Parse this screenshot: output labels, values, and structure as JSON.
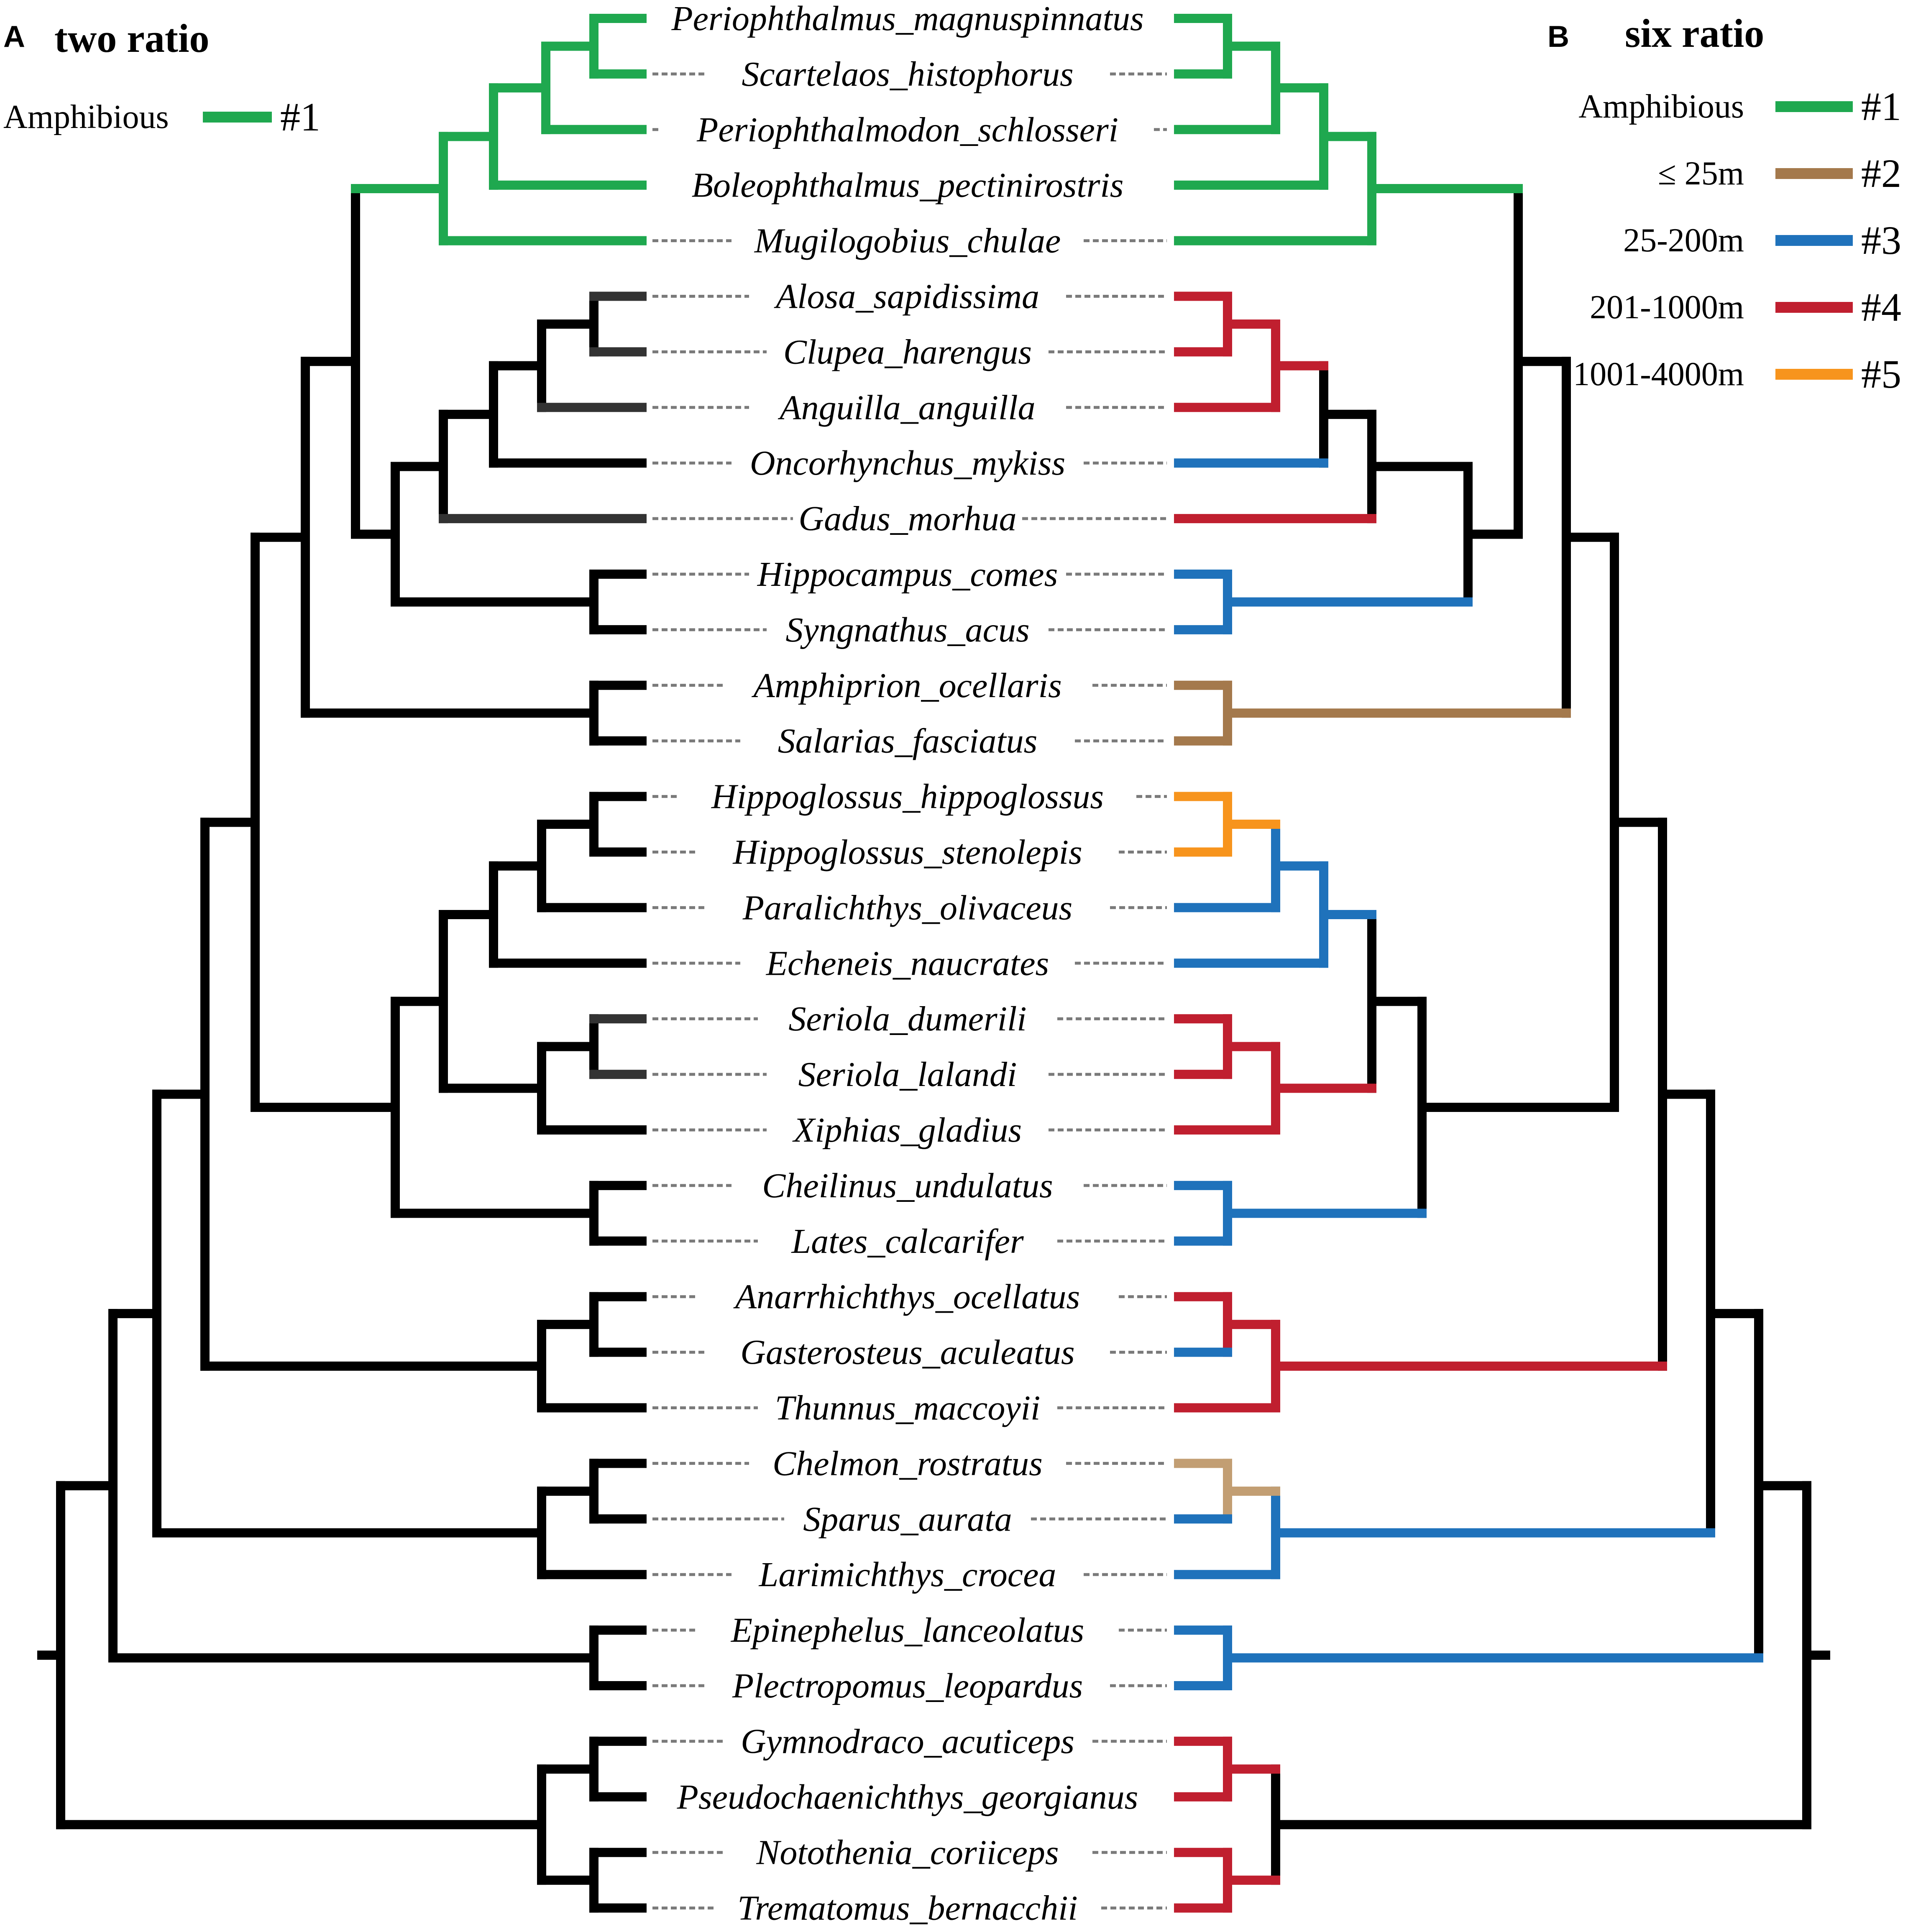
{
  "panel_a": {
    "letter": "A",
    "title": "two ratio"
  },
  "panel_b": {
    "letter": "B",
    "title": "six ratio"
  },
  "legend_a": [
    {
      "label": "Amphibious",
      "color": "#1fa84f",
      "number": "#1"
    }
  ],
  "legend_b": [
    {
      "label": "Amphibious",
      "color": "#1fa84f",
      "number": "#1"
    },
    {
      "label": "≤ 25m",
      "color": "#a4794c",
      "number": "#2"
    },
    {
      "label": "25-200m",
      "color": "#1f72bb",
      "number": "#3"
    },
    {
      "label": "201-1000m",
      "color": "#c01f2f",
      "number": "#4"
    },
    {
      "label": "1001-4000m",
      "color": "#f7941d",
      "number": "#5"
    }
  ],
  "colors": {
    "default": "#000000",
    "grey": "#333333",
    "amphibious": "#1fa84f",
    "shallow": "#a4794c",
    "shallow_light": "#c29e73",
    "shelf": "#1f72bb",
    "deep": "#c01f2f",
    "abyssal": "#f7941d",
    "dash": "#7a7a7a"
  },
  "species": [
    "Periophthalmus_magnuspinnatus",
    "Scartelaos_histophorus",
    "Periophthalmodon_schlosseri",
    "Boleophthalmus_pectinirostris",
    "Mugilogobius_chulae",
    "Alosa_sapidissima",
    "Clupea_harengus",
    "Anguilla_anguilla",
    "Oncorhynchus_mykiss",
    "Gadus_morhua",
    "Hippocampus_comes",
    "Syngnathus_acus",
    "Amphiprion_ocellaris",
    "Salarias_fasciatus",
    "Hippoglossus_hippoglossus",
    "Hippoglossus_stenolepis",
    "Paralichthys_olivaceus",
    "Echeneis_naucrates",
    "Seriola_dumerili",
    "Seriola_lalandi",
    "Xiphias_gladius",
    "Cheilinus_undulatus",
    "Lates_calcarifer",
    "Anarrhichthys_ocellatus",
    "Gasterosteus_aculeatus",
    "Thunnus_maccoyii",
    "Chelmon_rostratus",
    "Sparus_aurata",
    "Larimichthys_crocea",
    "Epinephelus_lanceolatus",
    "Plectropomus_leopardus",
    "Gymnodraco_acuticeps",
    "Pseudochaenichthys_georgianus",
    "Notothenia_coriiceps",
    "Trematomus_bernacchii"
  ],
  "tree": {
    "nodes": [
      {
        "id": "ps",
        "c": [
          0,
          1
        ]
      },
      {
        "id": "pp",
        "c": [
          "ps",
          2
        ]
      },
      {
        "id": "ppb",
        "c": [
          "pp",
          3
        ]
      },
      {
        "id": "go",
        "c": [
          "ppb",
          4
        ]
      },
      {
        "id": "ac",
        "c": [
          5,
          6
        ]
      },
      {
        "id": "aca",
        "c": [
          "ac",
          7
        ]
      },
      {
        "id": "acao",
        "c": [
          "aca",
          8
        ]
      },
      {
        "id": "acaog",
        "c": [
          "acao",
          9
        ]
      },
      {
        "id": "hs",
        "c": [
          10,
          11
        ]
      },
      {
        "id": "clu",
        "c": [
          "acaog",
          "hs"
        ]
      },
      {
        "id": "gc",
        "c": [
          "go",
          "clu"
        ]
      },
      {
        "id": "as",
        "c": [
          12,
          13
        ]
      },
      {
        "id": "g1",
        "c": [
          "gc",
          "as"
        ]
      },
      {
        "id": "hh",
        "c": [
          14,
          15
        ]
      },
      {
        "id": "hhp",
        "c": [
          "hh",
          16
        ]
      },
      {
        "id": "hhpe",
        "c": [
          "hhp",
          17
        ]
      },
      {
        "id": "sl",
        "c": [
          18,
          19
        ]
      },
      {
        "id": "slx",
        "c": [
          "sl",
          20
        ]
      },
      {
        "id": "flat",
        "c": [
          "hhpe",
          "slx"
        ]
      },
      {
        "id": "cl",
        "c": [
          21,
          22
        ]
      },
      {
        "id": "g2",
        "c": [
          "flat",
          "cl"
        ]
      },
      {
        "id": "g12",
        "c": [
          "g1",
          "g2"
        ]
      },
      {
        "id": "ag",
        "c": [
          23,
          24
        ]
      },
      {
        "id": "agt",
        "c": [
          "ag",
          25
        ]
      },
      {
        "id": "g3",
        "c": [
          "g12",
          "agt"
        ]
      },
      {
        "id": "cs",
        "c": [
          26,
          27
        ]
      },
      {
        "id": "csl",
        "c": [
          "cs",
          28
        ]
      },
      {
        "id": "g4",
        "c": [
          "g3",
          "csl"
        ]
      },
      {
        "id": "ep",
        "c": [
          29,
          30
        ]
      },
      {
        "id": "g5",
        "c": [
          "g4",
          "ep"
        ]
      },
      {
        "id": "gp",
        "c": [
          31,
          32
        ]
      },
      {
        "id": "nt",
        "c": [
          33,
          34
        ]
      },
      {
        "id": "ant",
        "c": [
          "gp",
          "nt"
        ]
      },
      {
        "id": "root",
        "c": [
          "g5",
          "ant"
        ]
      }
    ]
  }
}
